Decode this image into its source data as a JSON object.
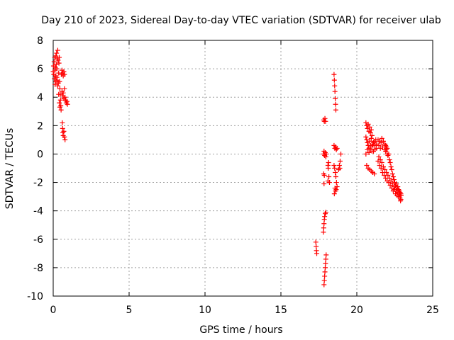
{
  "chart_data": {
    "type": "scatter",
    "title": "Day 210 of 2023, Sidereal Day-to-day VTEC variation (SDTVAR) for receiver ulab",
    "xlabel": "GPS time / hours",
    "ylabel": "SDTVAR / TECUs",
    "xlim": [
      0,
      25
    ],
    "ylim": [
      -10,
      8
    ],
    "x_ticks": [
      0,
      5,
      10,
      15,
      20,
      25
    ],
    "y_ticks": [
      -10,
      -8,
      -6,
      -4,
      -2,
      0,
      2,
      4,
      6,
      8
    ],
    "x_tick_labels": [
      "0",
      "5",
      "10",
      "15",
      "20",
      "25"
    ],
    "y_tick_labels": [
      "-10",
      "-8",
      "-6",
      "-4",
      "-2",
      "0",
      "2",
      "4",
      "6",
      "8"
    ],
    "grid": true,
    "marker": "+",
    "series_color": "#ff0000",
    "series": [
      {
        "name": "SDTVAR",
        "points": [
          [
            0.0,
            5.8
          ],
          [
            0.02,
            6.2
          ],
          [
            0.04,
            5.6
          ],
          [
            0.06,
            6.5
          ],
          [
            0.08,
            5.3
          ],
          [
            0.1,
            6.8
          ],
          [
            0.12,
            5.9
          ],
          [
            0.14,
            6.1
          ],
          [
            0.16,
            5.5
          ],
          [
            0.18,
            6.9
          ],
          [
            0.2,
            6.3
          ],
          [
            0.22,
            7.1
          ],
          [
            0.24,
            6.0
          ],
          [
            0.26,
            5.2
          ],
          [
            0.28,
            6.7
          ],
          [
            0.3,
            7.3
          ],
          [
            0.32,
            6.6
          ],
          [
            0.34,
            5.0
          ],
          [
            0.36,
            5.7
          ],
          [
            0.38,
            6.4
          ],
          [
            0.4,
            6.8
          ],
          [
            0.42,
            5.1
          ],
          [
            0.44,
            4.6
          ],
          [
            0.46,
            4.2
          ],
          [
            0.48,
            3.8
          ],
          [
            0.5,
            3.4
          ],
          [
            0.52,
            3.1
          ],
          [
            0.36,
            4.2
          ],
          [
            0.4,
            3.6
          ],
          [
            0.44,
            3.3
          ],
          [
            0.12,
            4.9
          ],
          [
            0.18,
            5.1
          ],
          [
            0.24,
            5.4
          ],
          [
            0.3,
            4.8
          ],
          [
            0.54,
            5.6
          ],
          [
            0.58,
            5.9
          ],
          [
            0.62,
            5.7
          ],
          [
            0.66,
            5.5
          ],
          [
            0.7,
            5.8
          ],
          [
            0.74,
            5.6
          ],
          [
            0.58,
            4.4
          ],
          [
            0.62,
            4.1
          ],
          [
            0.66,
            4.3
          ],
          [
            0.7,
            3.9
          ],
          [
            0.74,
            4.6
          ],
          [
            0.78,
            4.0
          ],
          [
            0.82,
            3.8
          ],
          [
            0.86,
            3.6
          ],
          [
            0.9,
            3.7
          ],
          [
            0.94,
            3.5
          ],
          [
            0.6,
            2.2
          ],
          [
            0.62,
            1.8
          ],
          [
            0.64,
            1.5
          ],
          [
            0.66,
            1.3
          ],
          [
            0.7,
            1.6
          ],
          [
            0.74,
            1.2
          ],
          [
            0.78,
            1.0
          ],
          [
            17.3,
            -6.2
          ],
          [
            17.32,
            -6.5
          ],
          [
            17.34,
            -6.8
          ],
          [
            17.36,
            -7.0
          ],
          [
            17.8,
            -5.5
          ],
          [
            17.82,
            -5.2
          ],
          [
            17.84,
            -4.9
          ],
          [
            17.86,
            -4.6
          ],
          [
            17.88,
            -4.4
          ],
          [
            17.92,
            -4.2
          ],
          [
            17.96,
            -4.1
          ],
          [
            17.84,
            -9.2
          ],
          [
            17.86,
            -8.9
          ],
          [
            17.88,
            -8.6
          ],
          [
            17.9,
            -8.3
          ],
          [
            17.92,
            -8.0
          ],
          [
            17.94,
            -7.7
          ],
          [
            17.96,
            -7.4
          ],
          [
            17.98,
            -7.1
          ],
          [
            17.82,
            2.4
          ],
          [
            17.86,
            2.3
          ],
          [
            17.9,
            2.5
          ],
          [
            17.94,
            2.3
          ],
          [
            17.8,
            0.0
          ],
          [
            17.84,
            0.2
          ],
          [
            17.88,
            -0.1
          ],
          [
            17.92,
            0.1
          ],
          [
            17.96,
            -0.2
          ],
          [
            18.0,
            0.0
          ],
          [
            17.82,
            -1.4
          ],
          [
            17.86,
            -1.5
          ],
          [
            17.84,
            -2.1
          ],
          [
            18.12,
            -1.0
          ],
          [
            18.16,
            -1.6
          ],
          [
            18.1,
            -1.9
          ],
          [
            18.2,
            -2.0
          ],
          [
            18.1,
            -0.8
          ],
          [
            18.14,
            -0.6
          ],
          [
            18.5,
            5.6
          ],
          [
            18.52,
            5.2
          ],
          [
            18.54,
            4.8
          ],
          [
            18.56,
            4.4
          ],
          [
            18.58,
            3.9
          ],
          [
            18.6,
            3.5
          ],
          [
            18.62,
            3.1
          ],
          [
            18.5,
            0.6
          ],
          [
            18.55,
            0.4
          ],
          [
            18.6,
            0.5
          ],
          [
            18.65,
            0.3
          ],
          [
            18.7,
            0.4
          ],
          [
            18.5,
            -0.8
          ],
          [
            18.54,
            -1.0
          ],
          [
            18.58,
            -1.3
          ],
          [
            18.62,
            -1.6
          ],
          [
            18.66,
            -2.0
          ],
          [
            18.7,
            -2.3
          ],
          [
            18.6,
            -2.6
          ],
          [
            18.52,
            -2.8
          ],
          [
            18.56,
            -2.4
          ],
          [
            18.64,
            -2.5
          ],
          [
            18.8,
            -1.1
          ],
          [
            18.85,
            -0.8
          ],
          [
            18.9,
            -0.5
          ],
          [
            18.95,
            0.0
          ],
          [
            18.88,
            -1.0
          ],
          [
            20.6,
            2.2
          ],
          [
            20.65,
            2.0
          ],
          [
            20.7,
            1.8
          ],
          [
            20.75,
            2.1
          ],
          [
            20.8,
            1.6
          ],
          [
            20.85,
            1.9
          ],
          [
            20.9,
            1.5
          ],
          [
            20.95,
            1.7
          ],
          [
            21.0,
            1.3
          ],
          [
            20.6,
            1.2
          ],
          [
            20.65,
            1.0
          ],
          [
            20.7,
            0.8
          ],
          [
            20.75,
            0.6
          ],
          [
            20.8,
            0.4
          ],
          [
            20.85,
            0.9
          ],
          [
            20.9,
            0.3
          ],
          [
            20.95,
            1.1
          ],
          [
            21.0,
            0.5
          ],
          [
            21.05,
            0.7
          ],
          [
            21.1,
            0.2
          ],
          [
            21.15,
            0.9
          ],
          [
            21.2,
            0.6
          ],
          [
            21.25,
            1.0
          ],
          [
            21.3,
            0.4
          ],
          [
            20.6,
            0.0
          ],
          [
            20.7,
            0.3
          ],
          [
            20.8,
            0.1
          ],
          [
            20.9,
            0.6
          ],
          [
            21.0,
            0.2
          ],
          [
            21.1,
            0.8
          ],
          [
            21.2,
            0.3
          ],
          [
            21.3,
            0.7
          ],
          [
            21.4,
            1.0
          ],
          [
            21.45,
            0.6
          ],
          [
            21.5,
            0.9
          ],
          [
            21.55,
            0.4
          ],
          [
            21.6,
            0.8
          ],
          [
            21.65,
            1.1
          ],
          [
            21.7,
            0.5
          ],
          [
            21.75,
            0.9
          ],
          [
            21.8,
            0.3
          ],
          [
            21.85,
            0.7
          ],
          [
            21.9,
            0.2
          ],
          [
            21.95,
            0.5
          ],
          [
            22.0,
            0.0
          ],
          [
            20.65,
            -0.8
          ],
          [
            20.75,
            -1.0
          ],
          [
            20.85,
            -1.1
          ],
          [
            20.95,
            -1.2
          ],
          [
            21.05,
            -1.3
          ],
          [
            21.15,
            -1.4
          ],
          [
            21.4,
            -0.5
          ],
          [
            21.45,
            -0.2
          ],
          [
            21.5,
            -0.8
          ],
          [
            21.55,
            -0.4
          ],
          [
            21.6,
            -1.0
          ],
          [
            21.65,
            -0.6
          ],
          [
            21.7,
            -1.3
          ],
          [
            21.75,
            -0.9
          ],
          [
            21.8,
            -1.5
          ],
          [
            21.85,
            -1.1
          ],
          [
            21.9,
            -1.7
          ],
          [
            21.95,
            -1.3
          ],
          [
            22.0,
            -1.9
          ],
          [
            22.05,
            -1.5
          ],
          [
            22.1,
            -2.0
          ],
          [
            22.15,
            -1.7
          ],
          [
            22.2,
            -2.2
          ],
          [
            22.25,
            -1.9
          ],
          [
            22.3,
            -2.4
          ],
          [
            22.35,
            -2.1
          ],
          [
            22.4,
            -2.6
          ],
          [
            22.45,
            -2.3
          ],
          [
            22.5,
            -2.5
          ],
          [
            22.55,
            -2.8
          ],
          [
            22.6,
            -2.6
          ],
          [
            22.65,
            -2.9
          ],
          [
            22.7,
            -2.7
          ],
          [
            22.75,
            -3.0
          ],
          [
            22.8,
            -2.8
          ],
          [
            22.85,
            -3.1
          ],
          [
            22.9,
            -3.2
          ],
          [
            22.92,
            -2.9
          ],
          [
            22.88,
            -3.3
          ],
          [
            21.9,
            0.6
          ],
          [
            21.95,
            0.3
          ],
          [
            22.0,
            0.4
          ],
          [
            22.05,
            -0.1
          ],
          [
            22.1,
            0.0
          ],
          [
            22.15,
            -0.4
          ],
          [
            22.2,
            -0.6
          ],
          [
            22.25,
            -0.9
          ],
          [
            22.3,
            -1.1
          ],
          [
            22.35,
            -1.4
          ],
          [
            22.4,
            -1.6
          ],
          [
            22.45,
            -1.8
          ],
          [
            22.5,
            -2.0
          ],
          [
            22.55,
            -2.2
          ],
          [
            22.6,
            -2.1
          ],
          [
            22.65,
            -2.4
          ],
          [
            22.7,
            -2.3
          ],
          [
            22.75,
            -2.5
          ],
          [
            22.8,
            -2.6
          ],
          [
            22.85,
            -2.7
          ],
          [
            22.9,
            -2.8
          ]
        ]
      }
    ]
  }
}
